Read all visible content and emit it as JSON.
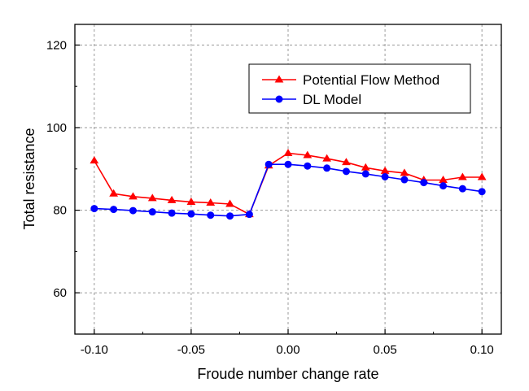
{
  "chart_data": {
    "type": "line",
    "xlabel": "Froude number change rate",
    "ylabel": "Total resistance",
    "xlim": [
      -0.11,
      0.11
    ],
    "ylim": [
      50,
      125
    ],
    "x_ticks": [
      -0.1,
      -0.05,
      0.0,
      0.05,
      0.1
    ],
    "x_tick_labels": [
      "-0.10",
      "-0.05",
      "0.00",
      "0.05",
      "0.10"
    ],
    "y_ticks": [
      60,
      80,
      100,
      120
    ],
    "y_tick_labels": [
      "60",
      "80",
      "100",
      "120"
    ],
    "grid": true,
    "legend_position": "top-right",
    "x": [
      -0.1,
      -0.09,
      -0.08,
      -0.07,
      -0.06,
      -0.05,
      -0.04,
      -0.03,
      -0.02,
      -0.01,
      0.0,
      0.01,
      0.02,
      0.03,
      0.04,
      0.05,
      0.06,
      0.07,
      0.08,
      0.09,
      0.1
    ],
    "series": [
      {
        "name": "Potential Flow Method",
        "color": "#ff0000",
        "marker": "triangle",
        "values": [
          92.0,
          84.0,
          83.3,
          82.9,
          82.4,
          82.0,
          81.8,
          81.5,
          79.0,
          90.8,
          93.8,
          93.3,
          92.5,
          91.6,
          90.3,
          89.5,
          89.0,
          87.3,
          87.3,
          88.0,
          88.0
        ]
      },
      {
        "name": "DL Model",
        "color": "#0000ff",
        "marker": "circle",
        "values": [
          80.4,
          80.2,
          79.9,
          79.6,
          79.3,
          79.1,
          78.8,
          78.6,
          79.0,
          91.1,
          91.1,
          90.7,
          90.2,
          89.4,
          88.8,
          88.1,
          87.4,
          86.7,
          85.9,
          85.2,
          84.5
        ]
      }
    ]
  }
}
